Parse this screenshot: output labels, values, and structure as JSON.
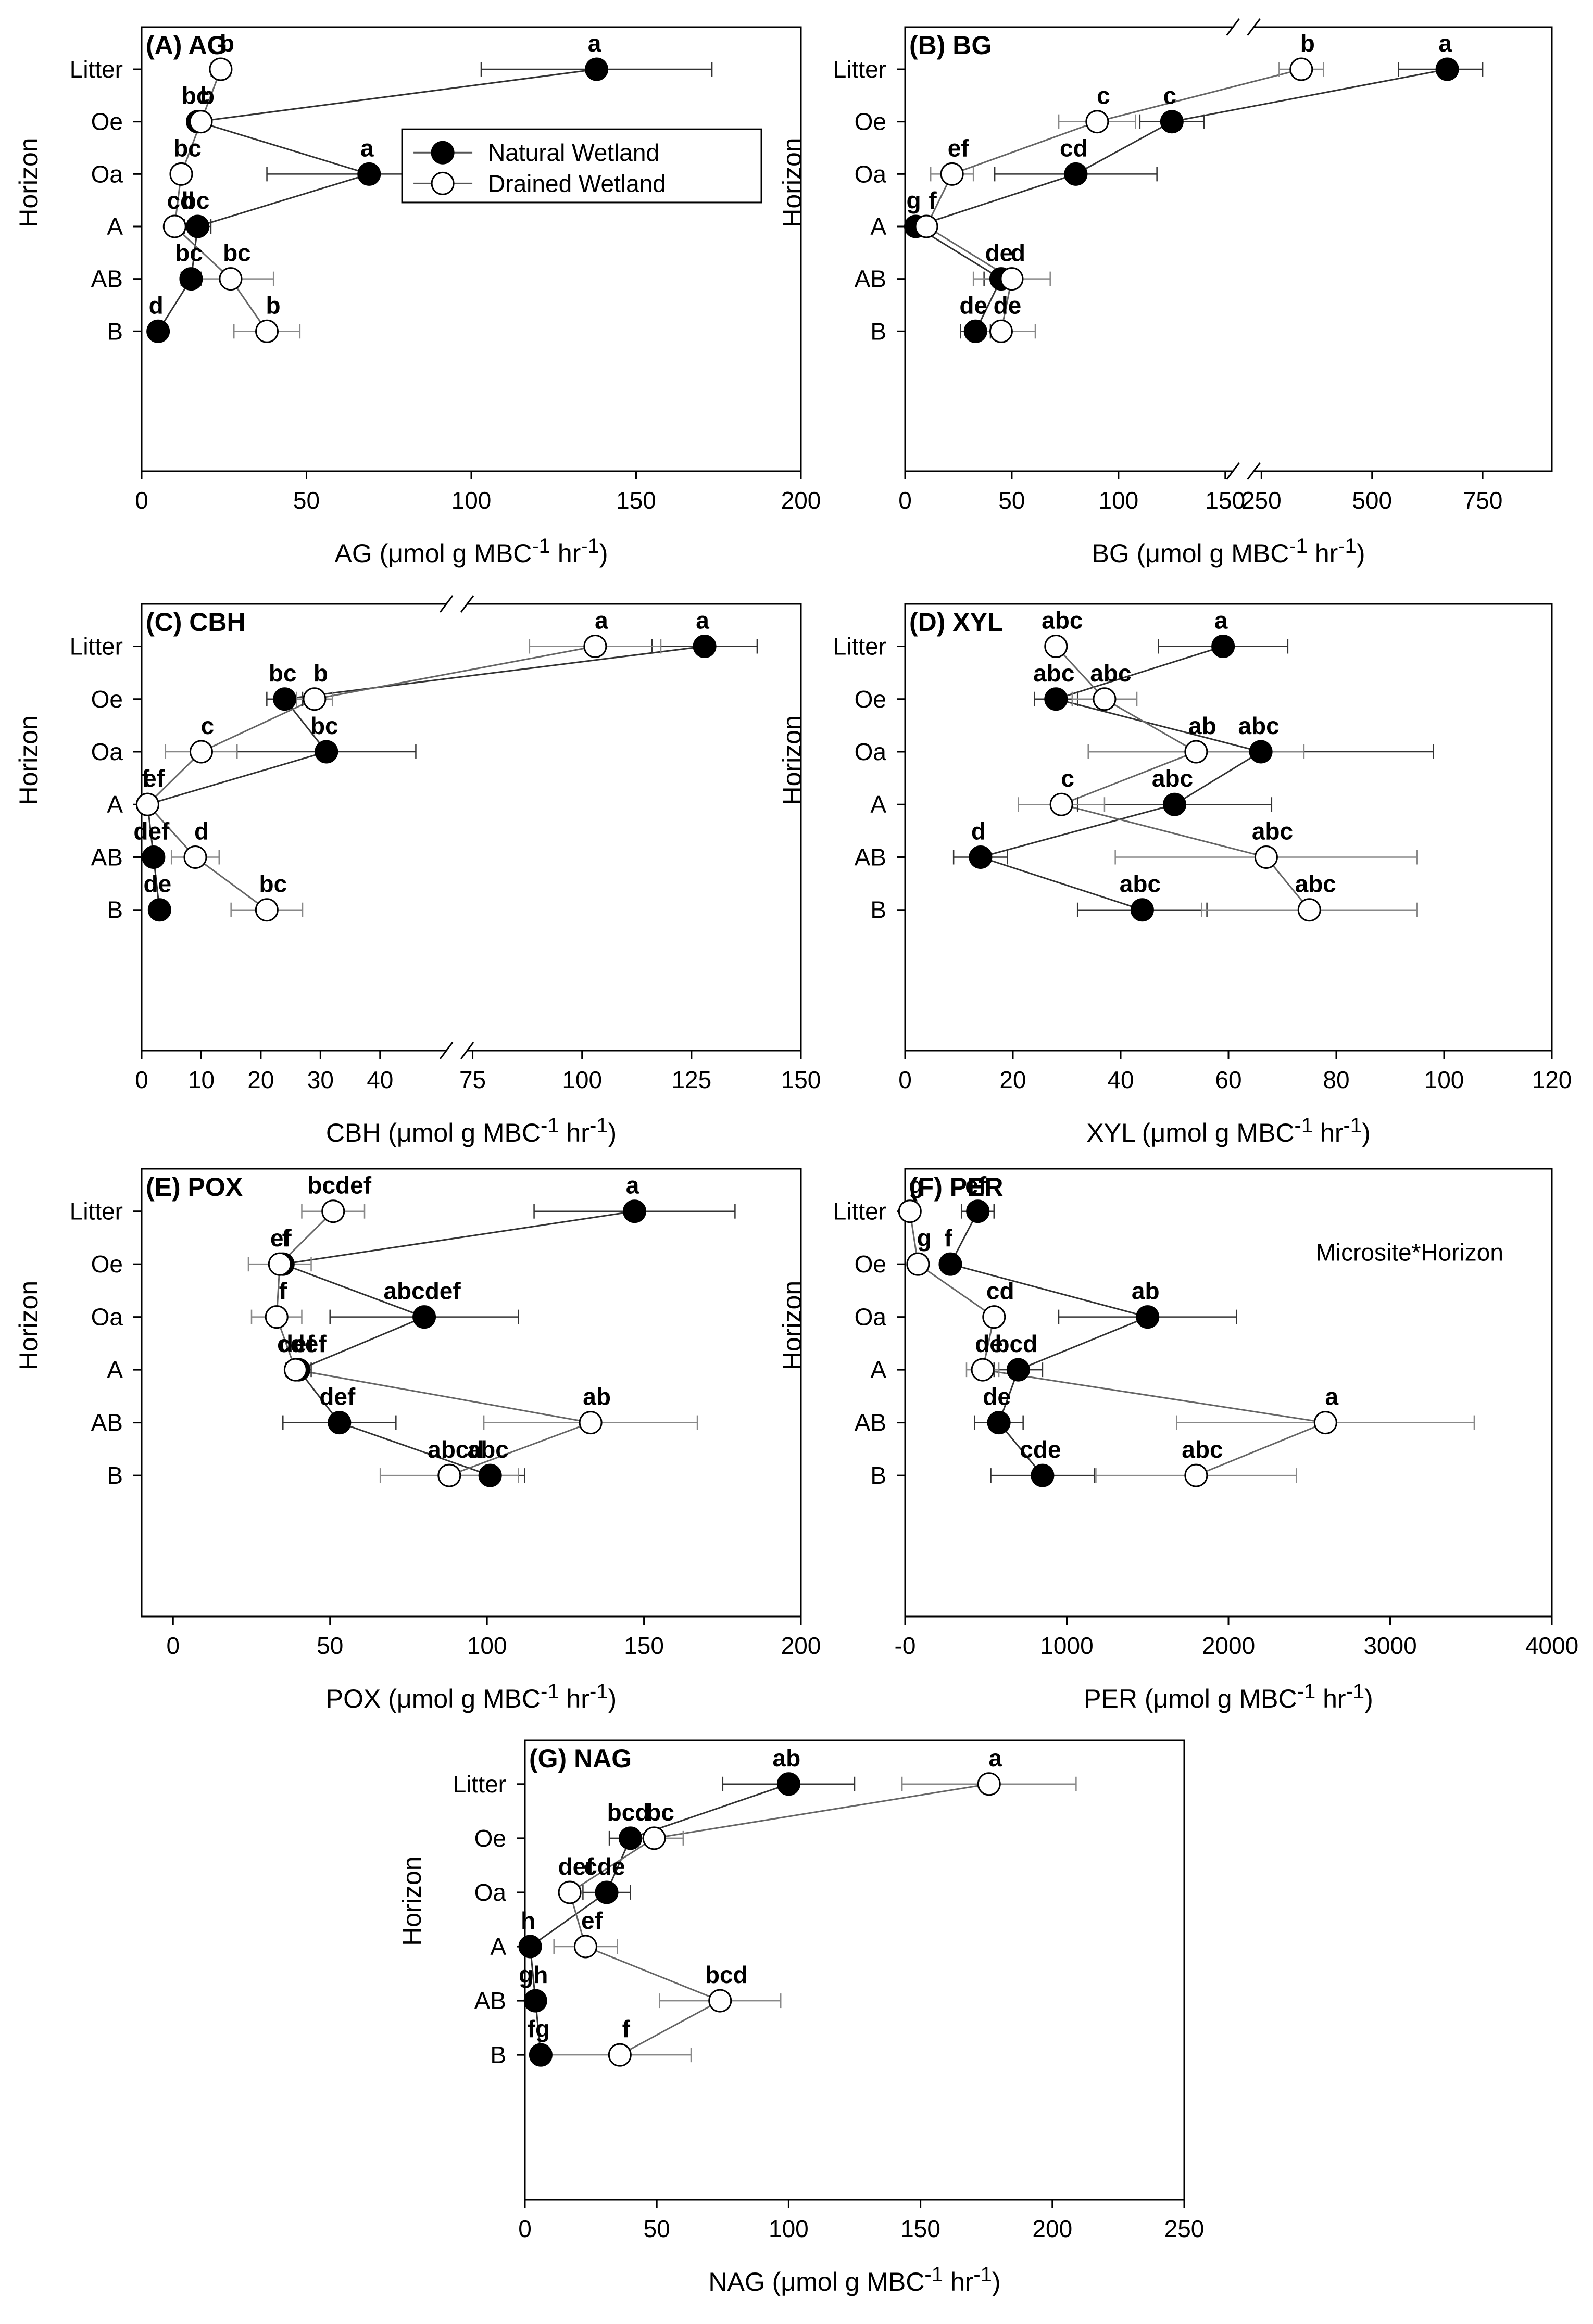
{
  "horizons": [
    "Litter",
    "Oe",
    "Oa",
    "A",
    "AB",
    "B"
  ],
  "legend": [
    {
      "label": "Natural Wetland",
      "marker": "filled",
      "color": "#000000"
    },
    {
      "label": "Drained Wetland",
      "marker": "open",
      "color": "#ffffff"
    }
  ],
  "chart_data": [
    {
      "type": "scatter",
      "title": "(A) AG",
      "xlabel": "AG (μmol g MBC⁻¹ hr⁻¹)",
      "ylabel": "Horizon",
      "categories": [
        "Litter",
        "Oe",
        "Oa",
        "A",
        "AB",
        "B"
      ],
      "xlim": [
        0,
        200
      ],
      "x_ticks": [
        "0",
        "50",
        "100",
        "150",
        "200"
      ],
      "series": [
        {
          "name": "Natural Wetland",
          "values": [
            138,
            17,
            69,
            17,
            15,
            5
          ],
          "errors": [
            35,
            0,
            31,
            4,
            3,
            0
          ],
          "letters": [
            "a",
            "bc",
            "a",
            "bc",
            "bc",
            "d"
          ]
        },
        {
          "name": "Drained Wetland",
          "values": [
            24,
            18,
            12,
            10,
            27,
            38
          ],
          "errors": [
            3,
            0,
            0,
            0,
            13,
            10
          ],
          "letters": [
            "b",
            "b",
            "bc",
            "cd",
            "bc",
            "b"
          ]
        }
      ],
      "legend_position": "center-right"
    },
    {
      "type": "scatter",
      "title": "(B) BG",
      "xlabel": "BG (μmol g MBC⁻¹ hr⁻¹)",
      "ylabel": "Horizon",
      "categories": [
        "Litter",
        "Oe",
        "Oa",
        "A",
        "AB",
        "B"
      ],
      "x_axis_break": [
        150,
        250
      ],
      "x_ticks": [
        "0",
        "50",
        "100",
        "150",
        "250",
        "500",
        "750"
      ],
      "series": [
        {
          "name": "Natural Wetland",
          "values": [
            670,
            125,
            80,
            5,
            45,
            33
          ],
          "errors": [
            110,
            15,
            38,
            0,
            8,
            7
          ],
          "letters": [
            "a",
            "c",
            "cd",
            "g",
            "de",
            "de"
          ]
        },
        {
          "name": "Drained Wetland",
          "values": [
            340,
            90,
            22,
            10,
            50,
            45
          ],
          "errors": [
            50,
            18,
            10,
            0,
            18,
            16
          ],
          "letters": [
            "b",
            "c",
            "ef",
            "f",
            "d",
            "de"
          ]
        }
      ]
    },
    {
      "type": "scatter",
      "title": "(C) CBH",
      "xlabel": "CBH (μmol g MBC⁻¹ hr⁻¹)",
      "ylabel": "Horizon",
      "categories": [
        "Litter",
        "Oe",
        "Oa",
        "A",
        "AB",
        "B"
      ],
      "x_axis_break": [
        50,
        75
      ],
      "x_ticks": [
        "0",
        "10",
        "20",
        "30",
        "40",
        "75",
        "100",
        "125",
        "150"
      ],
      "series": [
        {
          "name": "Natural Wetland",
          "values": [
            128,
            24,
            31,
            1,
            2,
            3
          ],
          "errors": [
            12,
            3,
            15,
            0,
            0,
            1
          ],
          "letters": [
            "a",
            "bc",
            "bc",
            "f",
            "def",
            "de"
          ]
        },
        {
          "name": "Drained Wetland",
          "values": [
            103,
            29,
            10,
            1,
            9,
            21
          ],
          "errors": [
            15,
            3,
            6,
            0,
            4,
            6
          ],
          "letters": [
            "a",
            "b",
            "c",
            "ef",
            "d",
            "bc"
          ]
        }
      ]
    },
    {
      "type": "scatter",
      "title": "(D) XYL",
      "xlabel": "XYL (μmol g MBC⁻¹ hr⁻¹)",
      "ylabel": "Horizon",
      "categories": [
        "Litter",
        "Oe",
        "Oa",
        "A",
        "AB",
        "B"
      ],
      "xlim": [
        0,
        120
      ],
      "x_ticks": [
        "0",
        "20",
        "40",
        "60",
        "80",
        "100",
        "120"
      ],
      "series": [
        {
          "name": "Natural Wetland",
          "values": [
            59,
            28,
            66,
            50,
            14,
            44
          ],
          "errors": [
            12,
            4,
            32,
            18,
            5,
            12
          ],
          "letters": [
            "a",
            "abc",
            "abc",
            "abc",
            "d",
            "abc"
          ]
        },
        {
          "name": "Drained Wetland",
          "values": [
            28,
            37,
            54,
            29,
            67,
            75
          ],
          "errors": [
            0,
            6,
            20,
            8,
            28,
            20
          ],
          "letters": [
            "abc",
            "abc",
            "ab",
            "c",
            "abc",
            "abc"
          ]
        }
      ]
    },
    {
      "type": "scatter",
      "title": "(E) POX",
      "xlabel": "POX (μmol g MBC⁻¹ hr⁻¹)",
      "ylabel": "Horizon",
      "categories": [
        "Litter",
        "Oe",
        "Oa",
        "A",
        "AB",
        "B"
      ],
      "xlim": [
        -10,
        200
      ],
      "x_ticks": [
        "0",
        "50",
        "100",
        "150",
        "200"
      ],
      "series": [
        {
          "name": "Natural Wetland",
          "values": [
            147,
            35,
            80,
            40,
            53,
            101
          ],
          "errors": [
            32,
            0,
            30,
            4,
            18,
            11
          ],
          "letters": [
            "a",
            "ef",
            "abcdef",
            "def",
            "def",
            "abc"
          ]
        },
        {
          "name": "Drained Wetland",
          "values": [
            51,
            34,
            33,
            39,
            133,
            88
          ],
          "errors": [
            10,
            10,
            8,
            0,
            34,
            22
          ],
          "letters": [
            "bcdef",
            "f",
            "f",
            "cdef",
            "ab",
            "abcd"
          ]
        }
      ]
    },
    {
      "type": "scatter",
      "title": "(F) PER",
      "xlabel": "PER (μmol g MBC⁻¹ hr⁻¹)",
      "ylabel": "Horizon",
      "annotation": "Microsite*Horizon",
      "categories": [
        "Litter",
        "Oe",
        "Oa",
        "A",
        "AB",
        "B"
      ],
      "xlim": [
        0,
        4000
      ],
      "x_ticks": [
        "-0",
        "1000",
        "2000",
        "3000",
        "4000"
      ],
      "series": [
        {
          "name": "Natural Wetland",
          "values": [
            450,
            280,
            1500,
            700,
            580,
            850
          ],
          "errors": [
            100,
            0,
            550,
            150,
            150,
            320
          ],
          "letters": [
            "ef",
            "f",
            "ab",
            "bcd",
            "de",
            "cde"
          ]
        },
        {
          "name": "Drained Wetland",
          "values": [
            30,
            80,
            550,
            480,
            2600,
            1800
          ],
          "errors": [
            0,
            0,
            0,
            100,
            920,
            620
          ],
          "letters": [
            "g",
            "g",
            "cd",
            "de",
            "a",
            "abc"
          ]
        }
      ]
    },
    {
      "type": "scatter",
      "title": "(G) NAG",
      "xlabel": "NAG (μmol g MBC⁻¹ hr⁻¹)",
      "ylabel": "Horizon",
      "categories": [
        "Litter",
        "Oe",
        "Oa",
        "A",
        "AB",
        "B"
      ],
      "xlim": [
        0,
        250
      ],
      "x_ticks": [
        "0",
        "50",
        "100",
        "150",
        "200",
        "250"
      ],
      "series": [
        {
          "name": "Natural Wetland",
          "values": [
            100,
            40,
            31,
            2,
            4,
            6
          ],
          "errors": [
            25,
            8,
            9,
            0,
            0,
            0
          ],
          "letters": [
            "ab",
            "bcd",
            "cde",
            "h",
            "gh",
            "fg"
          ]
        },
        {
          "name": "Drained Wetland",
          "values": [
            176,
            49,
            17,
            23,
            74,
            36
          ],
          "errors": [
            33,
            11,
            0,
            12,
            23,
            27
          ],
          "letters": [
            "a",
            "bc",
            "def",
            "ef",
            "bcd",
            "f"
          ]
        }
      ]
    }
  ]
}
